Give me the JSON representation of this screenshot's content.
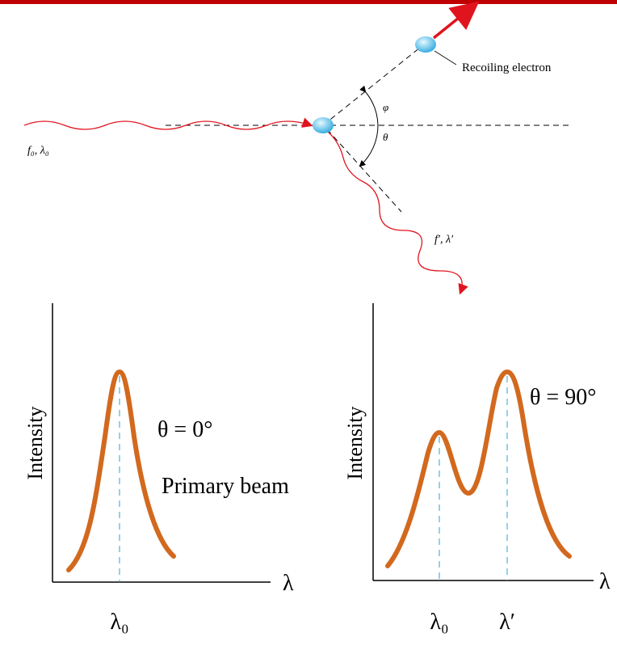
{
  "scattering": {
    "incident_label": "f₀, λ₀",
    "scattered_label": "f′, λ′",
    "electron_label": "Recoiling electron",
    "phi": "φ",
    "theta": "θ"
  },
  "plots": [
    {
      "y_label": "Intensity",
      "x_label": "λ",
      "angle": "θ = 0°",
      "note": "Primary beam",
      "peaks": [
        "λ₀"
      ]
    },
    {
      "y_label": "Intensity",
      "x_label": "λ",
      "angle": "θ = 90°",
      "peaks": [
        "λ₀",
        "λ′"
      ]
    }
  ]
}
